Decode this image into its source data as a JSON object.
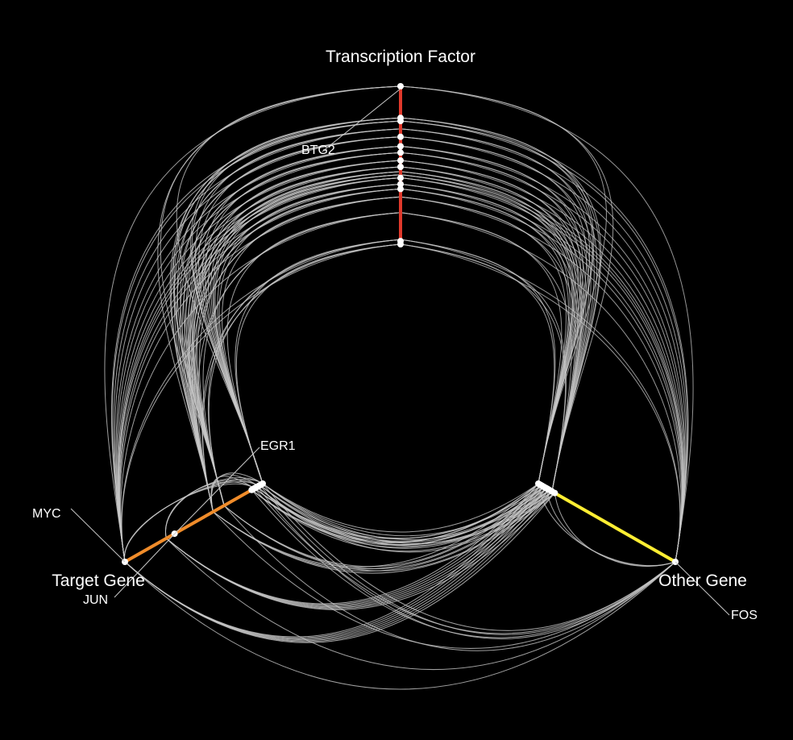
{
  "axes": {
    "top": {
      "title": "Transcription Factor",
      "color": "#e0392b"
    },
    "left": {
      "title": "Target Gene",
      "color": "#f08c2a"
    },
    "right": {
      "title": "Other Gene",
      "color": "#ffee33"
    }
  },
  "genes": {
    "btg2": "BTG2",
    "egr1": "EGR1",
    "myc": "MYC",
    "jun": "JUN",
    "fos": "FOS"
  },
  "edge_color": "#c8c8c8",
  "node_color": "#ffffff"
}
